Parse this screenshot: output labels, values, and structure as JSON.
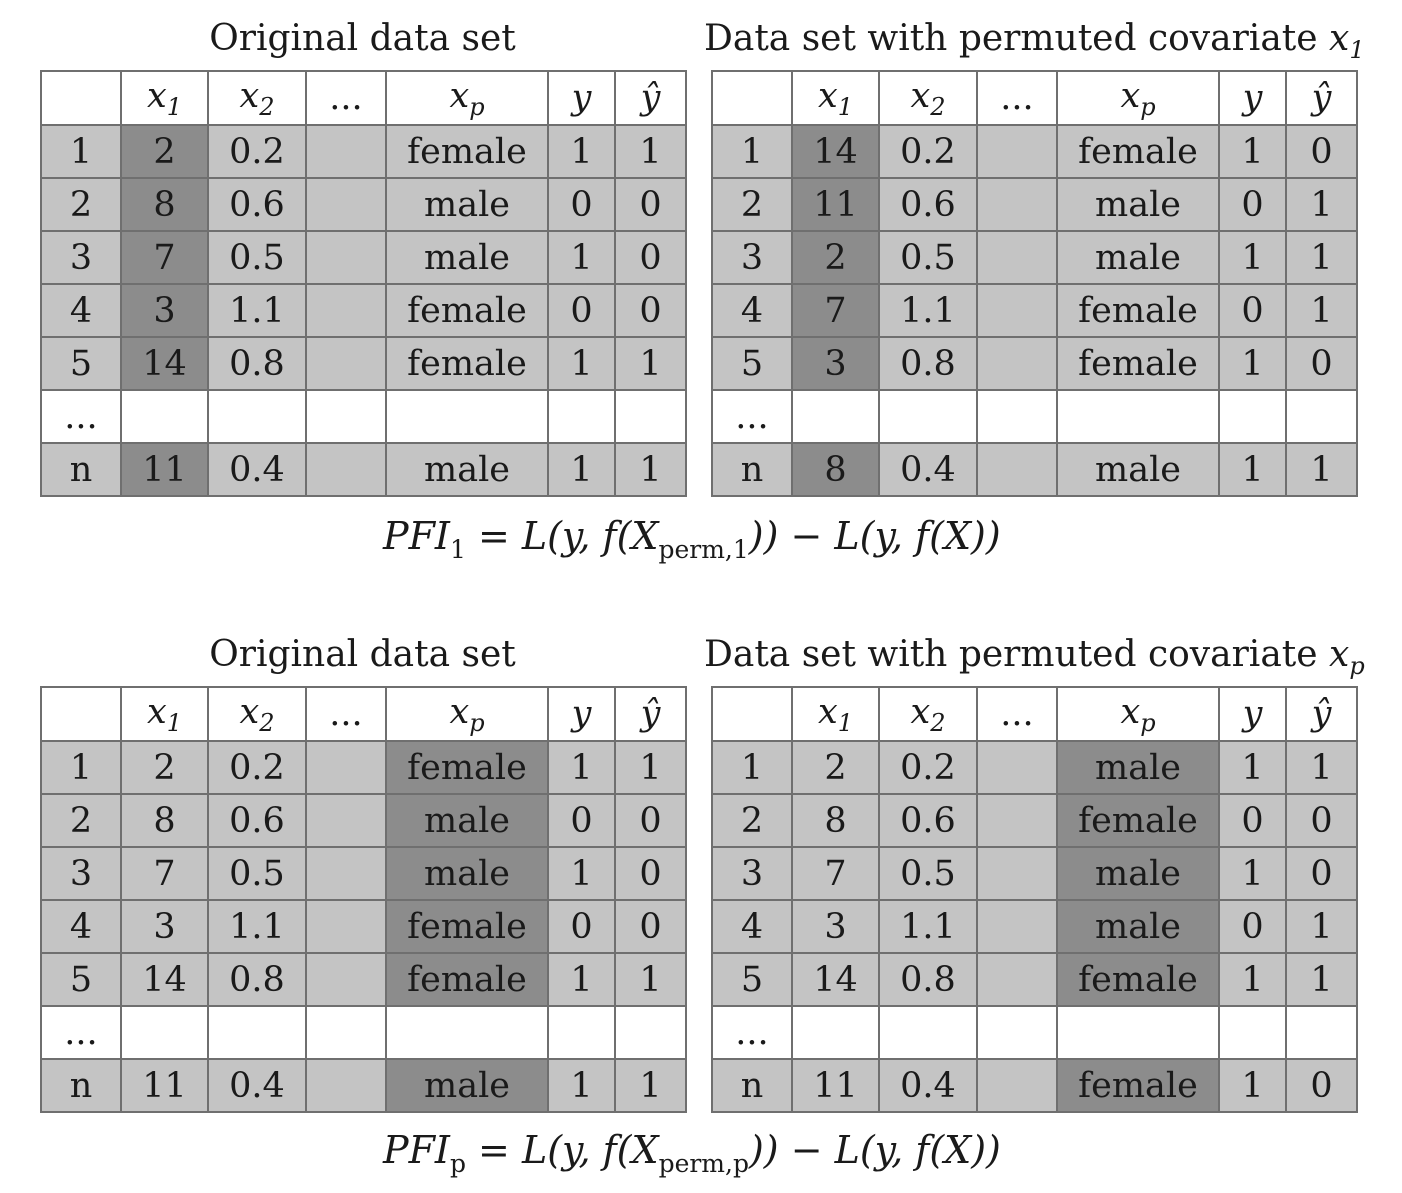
{
  "headers": {
    "x1": {
      "base": "x",
      "sub": "1"
    },
    "x2": {
      "base": "x",
      "sub": "2"
    },
    "dots": "...",
    "xp": {
      "base": "x",
      "sub": "p"
    },
    "y": "y",
    "yhat": "ŷ"
  },
  "panels": [
    {
      "title": "Original data set",
      "perm_column": "x1",
      "rows": [
        [
          "1",
          "2",
          "0.2",
          "",
          "female",
          "1",
          "1"
        ],
        [
          "2",
          "8",
          "0.6",
          "",
          "male",
          "0",
          "0"
        ],
        [
          "3",
          "7",
          "0.5",
          "",
          "male",
          "1",
          "0"
        ],
        [
          "4",
          "3",
          "1.1",
          "",
          "female",
          "0",
          "0"
        ],
        [
          "5",
          "14",
          "0.8",
          "",
          "female",
          "1",
          "1"
        ],
        [
          "...",
          "",
          "",
          "",
          "",
          "",
          ""
        ],
        [
          "n",
          "11",
          "0.4",
          "",
          "male",
          "1",
          "1"
        ]
      ]
    },
    {
      "title": "Data set with permuted covariate",
      "title_symbol": {
        "base": "x",
        "sub": "1"
      },
      "perm_column": "x1",
      "rows": [
        [
          "1",
          "14",
          "0.2",
          "",
          "female",
          "1",
          "0"
        ],
        [
          "2",
          "11",
          "0.6",
          "",
          "male",
          "0",
          "1"
        ],
        [
          "3",
          "2",
          "0.5",
          "",
          "male",
          "1",
          "1"
        ],
        [
          "4",
          "7",
          "1.1",
          "",
          "female",
          "0",
          "1"
        ],
        [
          "5",
          "3",
          "0.8",
          "",
          "female",
          "1",
          "0"
        ],
        [
          "...",
          "",
          "",
          "",
          "",
          "",
          ""
        ],
        [
          "n",
          "8",
          "0.4",
          "",
          "male",
          "1",
          "1"
        ]
      ]
    },
    {
      "title": "Original data set",
      "perm_column": "xp",
      "rows": [
        [
          "1",
          "2",
          "0.2",
          "",
          "female",
          "1",
          "1"
        ],
        [
          "2",
          "8",
          "0.6",
          "",
          "male",
          "0",
          "0"
        ],
        [
          "3",
          "7",
          "0.5",
          "",
          "male",
          "1",
          "0"
        ],
        [
          "4",
          "3",
          "1.1",
          "",
          "female",
          "0",
          "0"
        ],
        [
          "5",
          "14",
          "0.8",
          "",
          "female",
          "1",
          "1"
        ],
        [
          "...",
          "",
          "",
          "",
          "",
          "",
          ""
        ],
        [
          "n",
          "11",
          "0.4",
          "",
          "male",
          "1",
          "1"
        ]
      ]
    },
    {
      "title": "Data set with permuted covariate",
      "title_symbol": {
        "base": "x",
        "sub": "p"
      },
      "perm_column": "xp",
      "rows": [
        [
          "1",
          "2",
          "0.2",
          "",
          "male",
          "1",
          "1"
        ],
        [
          "2",
          "8",
          "0.6",
          "",
          "female",
          "0",
          "0"
        ],
        [
          "3",
          "7",
          "0.5",
          "",
          "male",
          "1",
          "0"
        ],
        [
          "4",
          "3",
          "1.1",
          "",
          "male",
          "0",
          "1"
        ],
        [
          "5",
          "14",
          "0.8",
          "",
          "female",
          "1",
          "1"
        ],
        [
          "...",
          "",
          "",
          "",
          "",
          "",
          ""
        ],
        [
          "n",
          "11",
          "0.4",
          "",
          "female",
          "1",
          "0"
        ]
      ]
    }
  ],
  "formulas": [
    {
      "lhs": "PFI",
      "lhs_sub": "1",
      "eq": " = ",
      "part1": "L(y, f(X",
      "perm_sub": "perm,1",
      "part2": ")) − L(y, f(X))"
    },
    {
      "lhs": "PFI",
      "lhs_sub": "p",
      "eq": " = ",
      "part1": "L(y, f(X",
      "perm_sub": "perm,p",
      "part2": ")) − L(y, f(X))"
    }
  ]
}
